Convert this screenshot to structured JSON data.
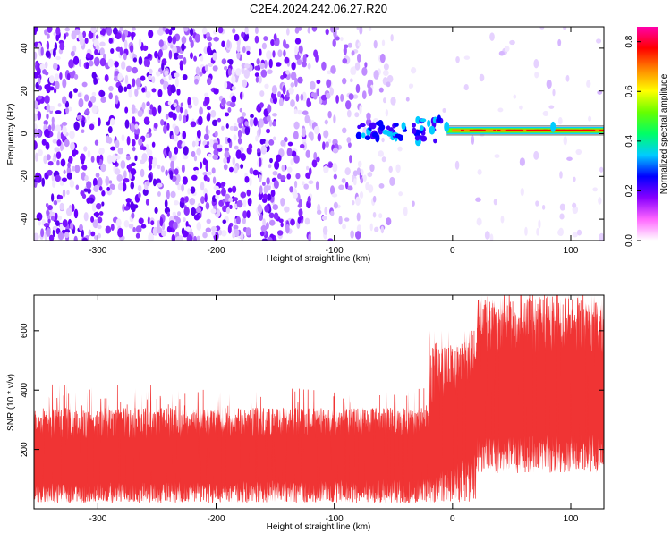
{
  "figure": {
    "title": "C2E4.2024.242.06.27.R20"
  },
  "chart_data": [
    {
      "type": "heatmap",
      "xlabel": "Height of straight line (km)",
      "ylabel": "Frequency (Hz)",
      "xlim": [
        -354,
        128
      ],
      "ylim": [
        -50,
        50
      ],
      "xticks": [
        -300,
        -200,
        -100,
        0,
        100
      ],
      "yticks": [
        -40,
        -20,
        0,
        20,
        40
      ],
      "grid": false,
      "colorbar": {
        "label": "Normalized spectral amplitude",
        "range": [
          0,
          0.86
        ],
        "ticks": [
          0.0,
          0.2,
          0.4,
          0.6,
          0.8
        ],
        "colors": [
          "#ffffff",
          "#ff66ff",
          "#8800ff",
          "#0000ff",
          "#00ccff",
          "#00ff66",
          "#66ff00",
          "#ffff00",
          "#ff8800",
          "#ff0000",
          "#ff00aa"
        ]
      },
      "features": {
        "noise_region_x": [
          -354,
          -5
        ],
        "signal_onset_km": -100,
        "tone_start_km": -5,
        "tone_frequency_hz": 1.5,
        "tone_peak_amplitude": 0.86,
        "tone_bump_km": [
          -5,
          85
        ]
      }
    },
    {
      "type": "line",
      "xlabel": "Height of straight line (km)",
      "ylabel": "SNR (10 * v/v)",
      "xlim": [
        -354,
        128
      ],
      "ylim": [
        0,
        720
      ],
      "xticks": [
        -300,
        -200,
        -100,
        0,
        100
      ],
      "yticks": [
        200,
        400,
        600
      ],
      "grid": false,
      "series": [
        {
          "color": "#f03434",
          "segments": [
            {
              "x": [
                -354,
                -20
              ],
              "baseline": [
                140,
                170
              ],
              "band": [
                20,
                340
              ],
              "spikes_to": 460
            },
            {
              "x": [
                -20,
                20
              ],
              "baseline": [
                170,
                340
              ],
              "band": [
                20,
                560
              ],
              "spikes_to": 600
            },
            {
              "x": [
                20,
                128
              ],
              "baseline": [
                340,
                360
              ],
              "band": [
                120,
                720
              ],
              "spikes_to": 720
            }
          ]
        }
      ]
    }
  ]
}
